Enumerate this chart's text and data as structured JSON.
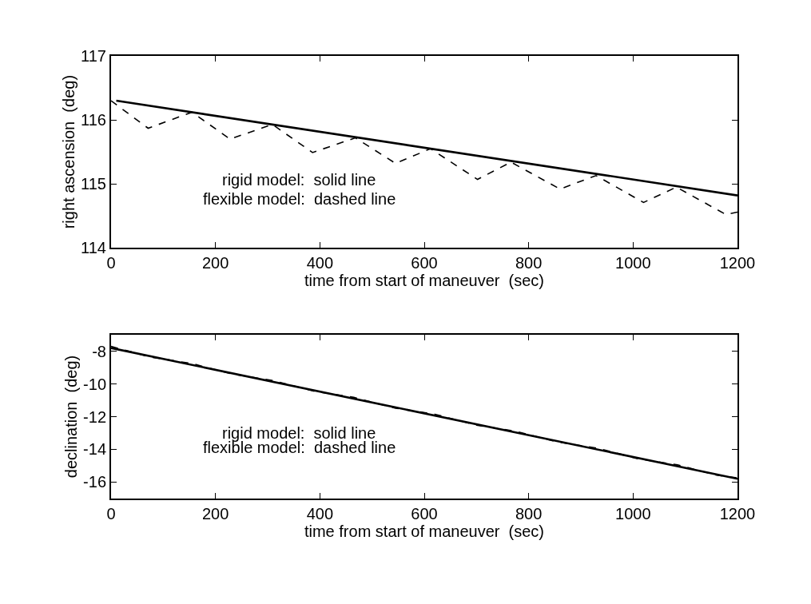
{
  "chart_data": [
    {
      "type": "line",
      "xlabel": "time from start of maneuver  (sec)",
      "ylabel": "right ascension  (deg)",
      "xlim": [
        0,
        1200
      ],
      "xticks": [
        0,
        200,
        400,
        600,
        800,
        1000,
        1200
      ],
      "ylim": [
        114,
        117
      ],
      "yticks": [
        114,
        115,
        116,
        117
      ],
      "series": [
        {
          "color": "#000000",
          "line_style": "solid",
          "x": [
            10,
            1200
          ],
          "values": [
            116.3,
            114.82
          ]
        },
        {
          "color": "#000000",
          "line_style": "dashed",
          "x": [
            0,
            71,
            155,
            228,
            309,
            386,
            468,
            545,
            612,
            702,
            766,
            860,
            929,
            1020,
            1083,
            1178,
            1200
          ],
          "values": [
            116.3,
            115.87,
            116.12,
            115.7,
            115.93,
            115.49,
            115.72,
            115.32,
            115.55,
            115.07,
            115.34,
            114.92,
            115.13,
            114.71,
            114.95,
            114.52,
            114.56
          ]
        }
      ],
      "annotations": [
        "rigid model:  solid line",
        "flexible model:  dashed line"
      ]
    },
    {
      "type": "line",
      "xlabel": "time from start of maneuver  (sec)",
      "ylabel": "declination  (deg)",
      "xlim": [
        0,
        1200
      ],
      "xticks": [
        0,
        200,
        400,
        600,
        800,
        1000,
        1200
      ],
      "ylim": [
        -17,
        -7
      ],
      "yticks": [
        -16,
        -14,
        -12,
        -10,
        -8
      ],
      "series": [
        {
          "color": "#000000",
          "line_style": "solid",
          "x": [
            0,
            1200
          ],
          "values": [
            -7.8,
            -15.8
          ]
        },
        {
          "color": "#000000",
          "line_style": "dashed",
          "x": [
            0,
            75,
            155,
            230,
            310,
            390,
            465,
            545,
            620,
            700,
            775,
            855,
            930,
            1010,
            1085,
            1160,
            1200
          ],
          "values": [
            -7.7,
            -8.35,
            -8.75,
            -9.38,
            -9.79,
            -10.45,
            -10.82,
            -11.48,
            -11.85,
            -12.52,
            -12.89,
            -13.55,
            -13.92,
            -14.58,
            -14.95,
            -15.58,
            -15.75
          ]
        }
      ],
      "annotations": [
        "rigid model:  solid line",
        "flexible model:  dashed line"
      ]
    }
  ]
}
